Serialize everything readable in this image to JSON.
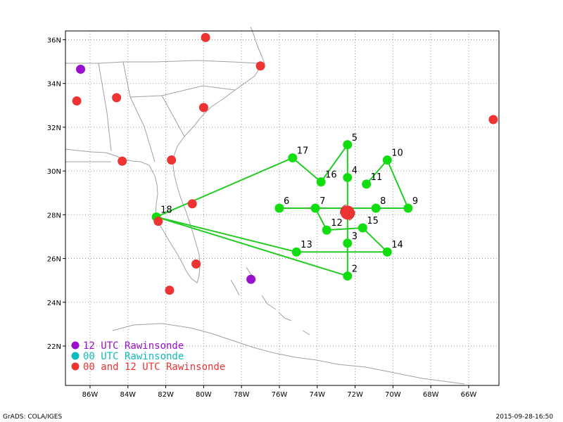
{
  "map": {
    "lon_range": [
      -87.3,
      -64.4
    ],
    "lat_range": [
      20.2,
      36.4
    ],
    "lon_ticks": [
      {
        "value": -86,
        "label": "86W"
      },
      {
        "value": -84,
        "label": "84W"
      },
      {
        "value": -82,
        "label": "82W"
      },
      {
        "value": -80,
        "label": "80W"
      },
      {
        "value": -78,
        "label": "78W"
      },
      {
        "value": -76,
        "label": "76W"
      },
      {
        "value": -74,
        "label": "74W"
      },
      {
        "value": -72,
        "label": "72W"
      },
      {
        "value": -70,
        "label": "70W"
      },
      {
        "value": -68,
        "label": "68W"
      },
      {
        "value": -66,
        "label": "66W"
      }
    ],
    "lat_ticks": [
      {
        "value": 22,
        "label": "22N"
      },
      {
        "value": 24,
        "label": "24N"
      },
      {
        "value": 26,
        "label": "26N"
      },
      {
        "value": 28,
        "label": "28N"
      },
      {
        "value": 30,
        "label": "30N"
      },
      {
        "value": 32,
        "label": "32N"
      },
      {
        "value": 34,
        "label": "34N"
      },
      {
        "value": 36,
        "label": "36N"
      }
    ],
    "colors": {
      "track": "#22cc22",
      "waypoint": "#11dd11",
      "utc12": "#9911cc",
      "utc00": "#11bbbb",
      "both": "#ee3333",
      "coast": "#a0a0a0",
      "grid": "#999999"
    },
    "storm_center": {
      "lon": -72.4,
      "lat": 28.1
    },
    "waypoints": [
      {
        "id": "2",
        "lon": -72.4,
        "lat": 25.2
      },
      {
        "id": "3",
        "lon": -72.4,
        "lat": 26.7
      },
      {
        "id": "4",
        "lon": -72.4,
        "lat": 29.7
      },
      {
        "id": "5",
        "lon": -72.4,
        "lat": 31.2
      },
      {
        "id": "6",
        "lon": -76.0,
        "lat": 28.3
      },
      {
        "id": "7",
        "lon": -74.1,
        "lat": 28.3
      },
      {
        "id": "8",
        "lon": -70.9,
        "lat": 28.3
      },
      {
        "id": "9",
        "lon": -69.2,
        "lat": 28.3
      },
      {
        "id": "10",
        "lon": -70.3,
        "lat": 30.5
      },
      {
        "id": "11",
        "lon": -71.4,
        "lat": 29.4
      },
      {
        "id": "12",
        "lon": -73.5,
        "lat": 27.3
      },
      {
        "id": "13",
        "lon": -75.1,
        "lat": 26.3
      },
      {
        "id": "14",
        "lon": -70.3,
        "lat": 26.3
      },
      {
        "id": "15",
        "lon": -71.6,
        "lat": 27.4
      },
      {
        "id": "16",
        "lon": -73.8,
        "lat": 29.5
      },
      {
        "id": "17",
        "lon": -75.3,
        "lat": 30.6
      },
      {
        "id": "18",
        "lon": -82.5,
        "lat": 27.9
      }
    ],
    "track_order": [
      "18",
      "2",
      "3",
      "4",
      "5",
      "16",
      "17",
      "18",
      "13",
      "14",
      "15",
      "12",
      "7",
      "6",
      "8",
      "9",
      "10",
      "11"
    ],
    "rawinsondes": [
      {
        "type": "utc12",
        "lon": -86.5,
        "lat": 34.65
      },
      {
        "type": "utc12",
        "lon": -77.5,
        "lat": 25.05
      },
      {
        "type": "both",
        "lon": -79.9,
        "lat": 36.1
      },
      {
        "type": "both",
        "lon": -77.0,
        "lat": 34.8
      },
      {
        "type": "both",
        "lon": -84.6,
        "lat": 33.35
      },
      {
        "type": "both",
        "lon": -86.7,
        "lat": 33.2
      },
      {
        "type": "both",
        "lon": -80.0,
        "lat": 32.9
      },
      {
        "type": "both",
        "lon": -64.7,
        "lat": 32.35
      },
      {
        "type": "both",
        "lon": -84.3,
        "lat": 30.45
      },
      {
        "type": "both",
        "lon": -81.7,
        "lat": 30.5
      },
      {
        "type": "both",
        "lon": -80.6,
        "lat": 28.5
      },
      {
        "type": "both",
        "lon": -82.4,
        "lat": 27.7
      },
      {
        "type": "both",
        "lon": -80.4,
        "lat": 25.75
      },
      {
        "type": "both",
        "lon": -81.8,
        "lat": 24.55
      }
    ]
  },
  "legend": {
    "items": [
      {
        "type": "utc12",
        "label": "12 UTC Rawinsonde"
      },
      {
        "type": "utc00",
        "label": "00 UTC Rawinsonde"
      },
      {
        "type": "both",
        "label": "00 and 12 UTC Rawinsonde"
      }
    ]
  },
  "footer": {
    "left": "GrADS: COLA/IGES",
    "right": "2015-09-28-16:50"
  }
}
